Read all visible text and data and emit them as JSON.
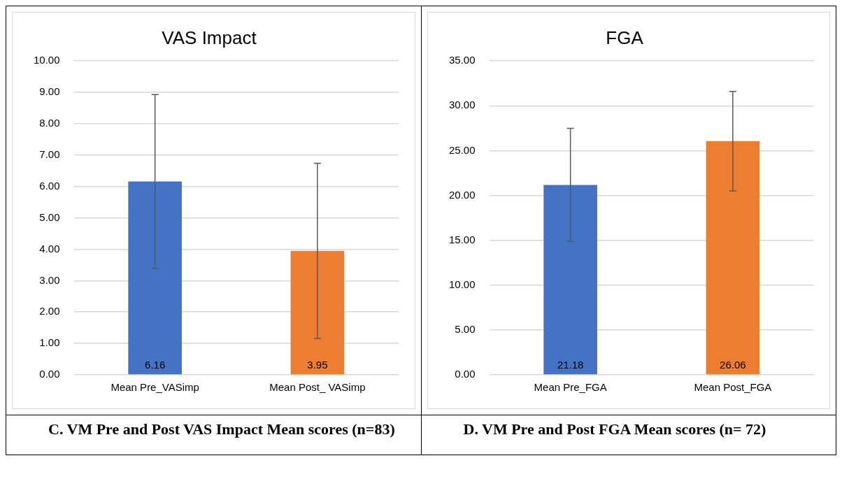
{
  "chart_data": [
    {
      "type": "bar",
      "title": "VAS Impact",
      "categories": [
        "Mean Pre_VASimp",
        "Mean Post_ VASimp"
      ],
      "values": [
        6.16,
        3.95
      ],
      "colors": [
        "#4472c4",
        "#ed7d31"
      ],
      "errors": [
        2.77,
        2.79
      ],
      "ylim": [
        0,
        10
      ],
      "yticks": [
        {
          "value": 0,
          "label": "0.00"
        },
        {
          "value": 1,
          "label": "1.00"
        },
        {
          "value": 2,
          "label": "2.00"
        },
        {
          "value": 3,
          "label": "3.00"
        },
        {
          "value": 4,
          "label": "4.00"
        },
        {
          "value": 5,
          "label": "5.00"
        },
        {
          "value": 6,
          "label": "6.00"
        },
        {
          "value": 7,
          "label": "7.00"
        },
        {
          "value": 8,
          "label": "8.00"
        },
        {
          "value": 9,
          "label": "9.00"
        },
        {
          "value": 10,
          "label": "10.00"
        }
      ],
      "grid": "y",
      "legend": false,
      "data_labels": true,
      "annotations": [
        "C.  VM Pre and Post VAS Impact Mean scores (n=83)"
      ]
    },
    {
      "type": "bar",
      "title": "FGA",
      "categories": [
        "Mean Pre_FGA",
        "Mean Post_FGA"
      ],
      "values": [
        21.18,
        26.06
      ],
      "colors": [
        "#4472c4",
        "#ed7d31"
      ],
      "errors": [
        6.31,
        5.54
      ],
      "ylim": [
        0,
        35
      ],
      "yticks": [
        {
          "value": 0,
          "label": "0.00"
        },
        {
          "value": 5,
          "label": "5.00"
        },
        {
          "value": 10,
          "label": "10.00"
        },
        {
          "value": 15,
          "label": "15.00"
        },
        {
          "value": 20,
          "label": "20.00"
        },
        {
          "value": 25,
          "label": "25.00"
        },
        {
          "value": 30,
          "label": "30.00"
        },
        {
          "value": 35,
          "label": "35.00"
        }
      ],
      "grid": "y",
      "legend": false,
      "data_labels": true,
      "annotations": [
        "D.  VM Pre and Post FGA Mean scores (n= 72)"
      ]
    }
  ]
}
